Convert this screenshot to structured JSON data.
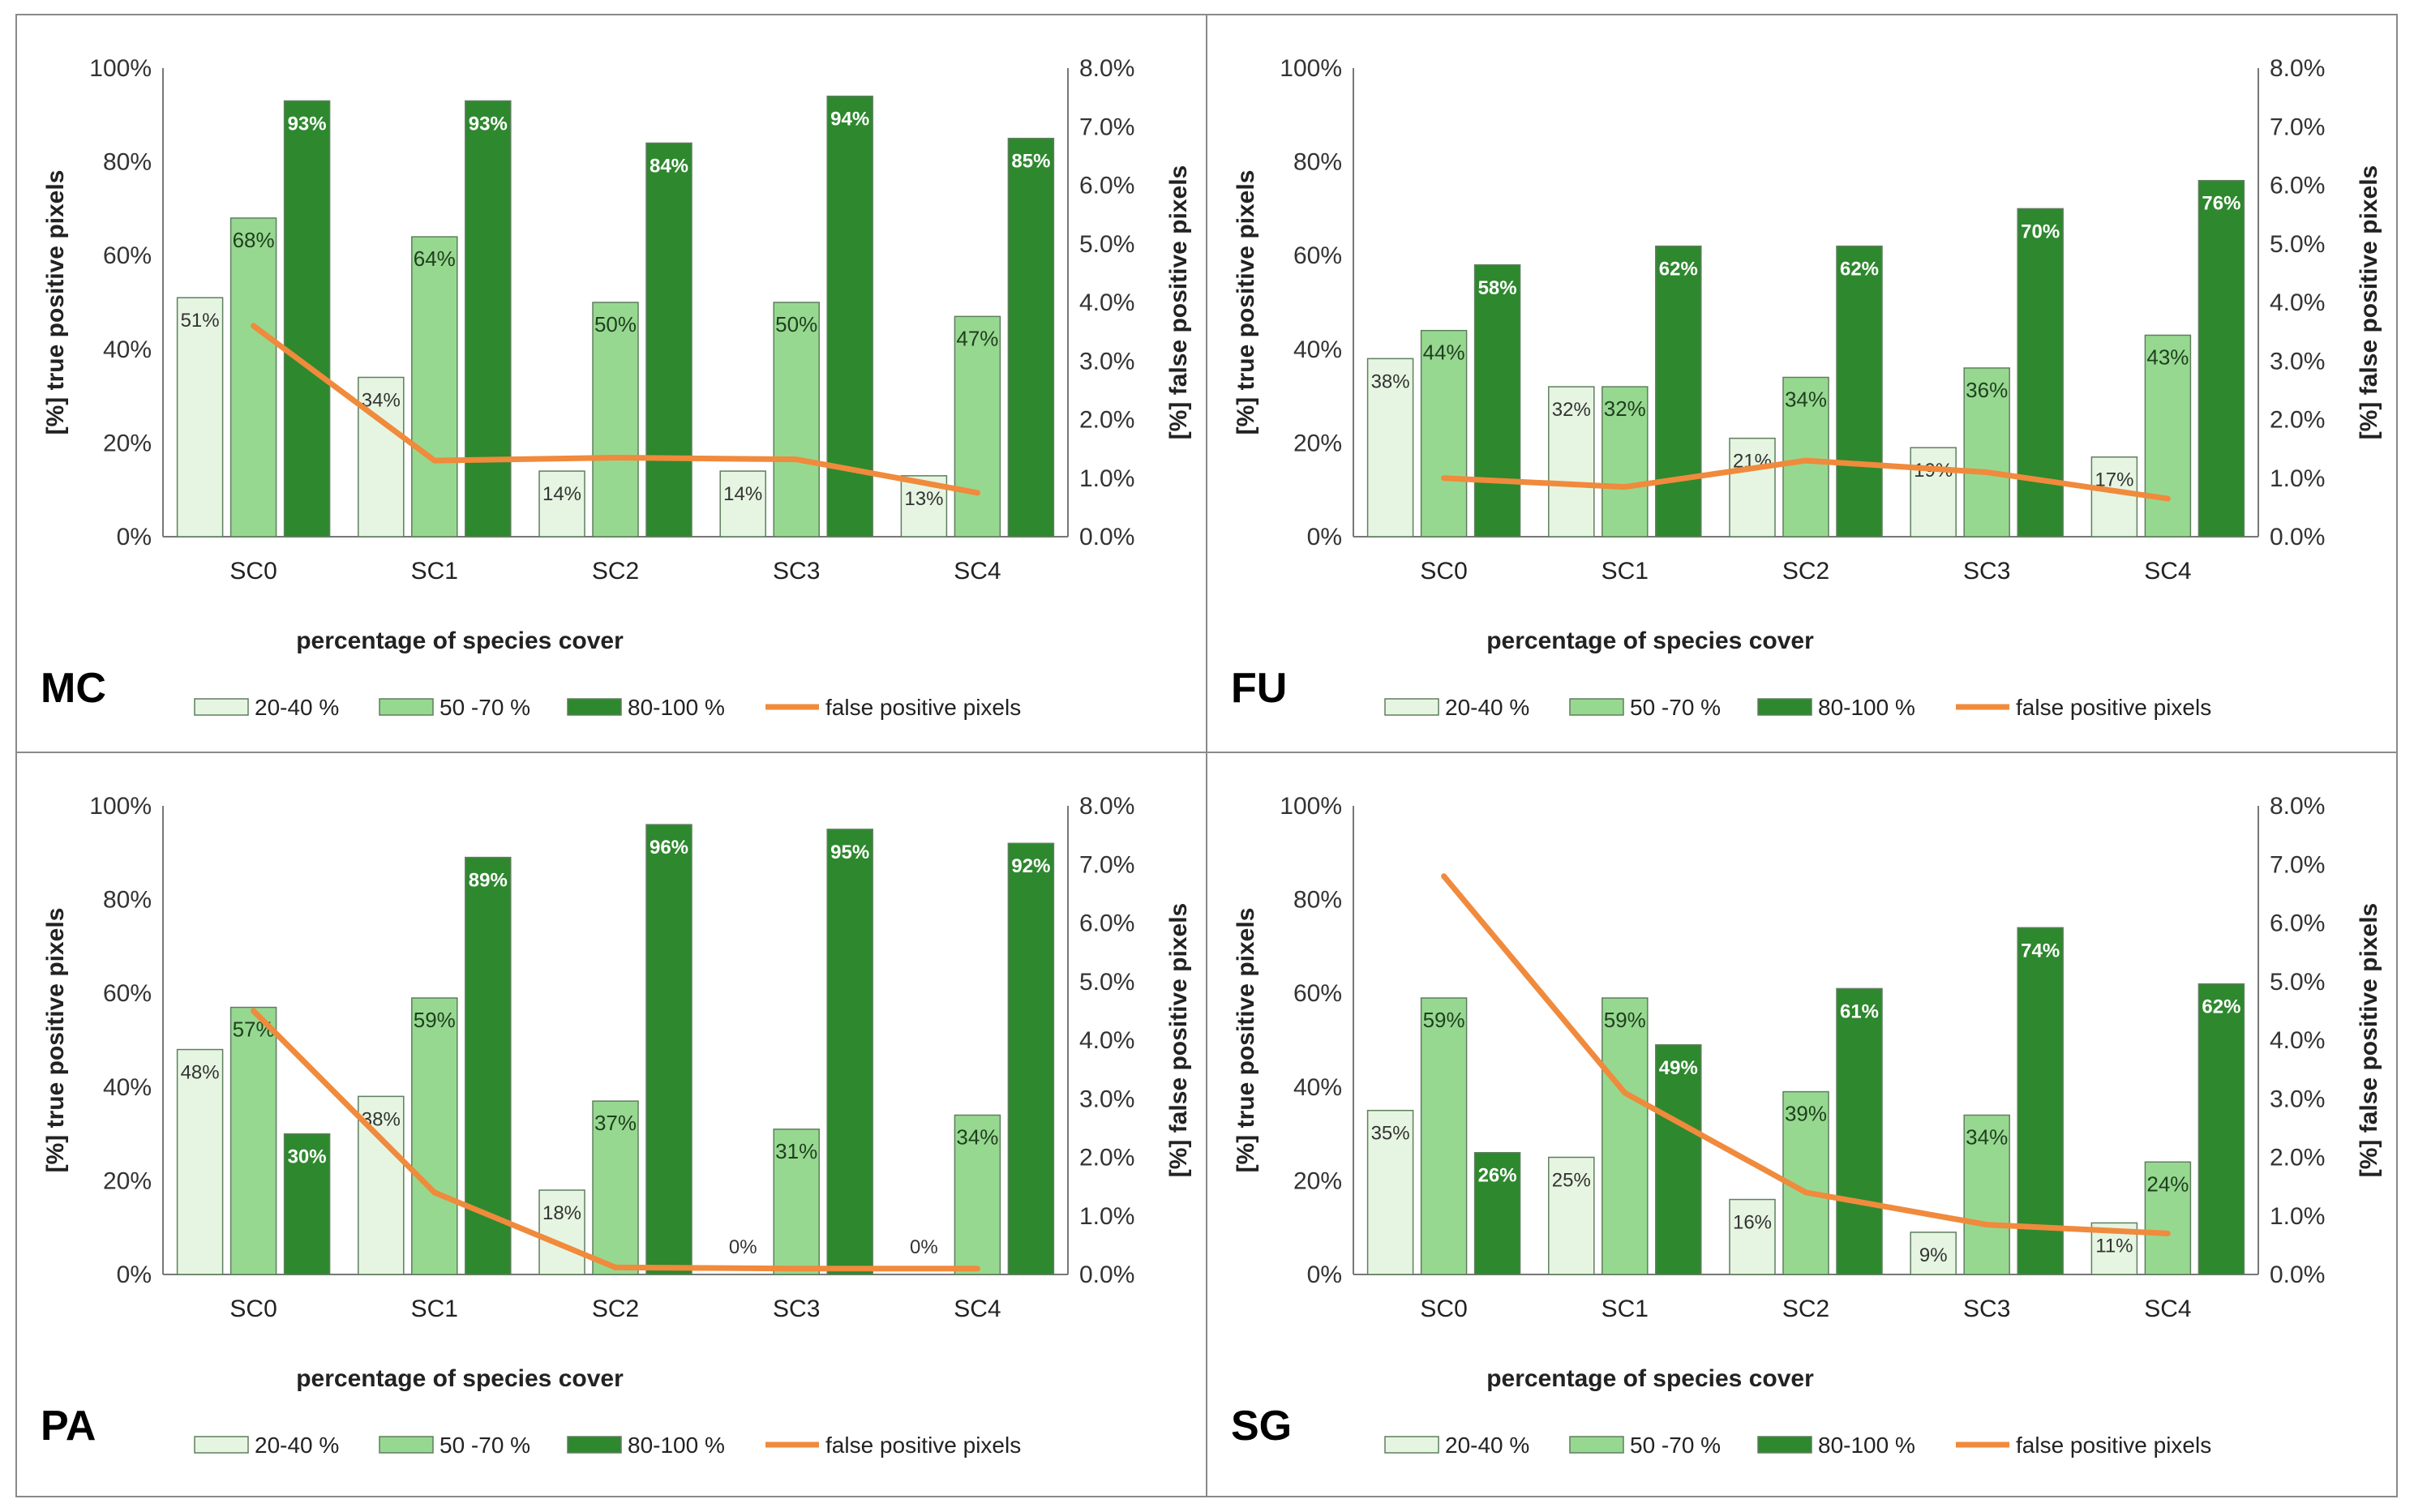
{
  "legend": {
    "items": [
      "20-40 %",
      "50 -70 %",
      "80-100 %",
      "false positive pixels"
    ]
  },
  "colors": {
    "light": "#e6f5e1",
    "mid": "#97d890",
    "dark": "#2e882e",
    "line": "#f08a3c"
  },
  "chart_data": [
    {
      "type": "bar",
      "panel": "MC",
      "categories": [
        "SC0",
        "SC1",
        "SC2",
        "SC3",
        "SC4"
      ],
      "xlabel": "percentage of species cover",
      "ylabel": "[%] true positive pixels",
      "y2label": "[%] false positive pixels",
      "ylim": [
        0,
        100
      ],
      "y2lim": [
        0,
        8
      ],
      "yticks": [
        "0%",
        "20%",
        "40%",
        "60%",
        "80%",
        "100%"
      ],
      "y2ticks": [
        "0.0%",
        "1.0%",
        "2.0%",
        "3.0%",
        "4.0%",
        "5.0%",
        "6.0%",
        "7.0%",
        "8.0%"
      ],
      "series": [
        {
          "name": "20-40 %",
          "values": [
            51,
            34,
            14,
            14,
            13
          ],
          "labels": [
            "51%",
            "34%",
            "14%",
            "14%",
            "13%"
          ]
        },
        {
          "name": "50 -70 %",
          "values": [
            68,
            64,
            50,
            50,
            47
          ],
          "labels": [
            "68%",
            "64%",
            "50%",
            "50%",
            "47%"
          ]
        },
        {
          "name": "80-100 %",
          "values": [
            93,
            93,
            84,
            94,
            85
          ],
          "labels": [
            "93%",
            "93%",
            "84%",
            "94%",
            "85%"
          ]
        }
      ],
      "line": {
        "name": "false positive pixels",
        "values": [
          3.6,
          1.3,
          1.35,
          1.32,
          0.75
        ]
      }
    },
    {
      "type": "bar",
      "panel": "FU",
      "categories": [
        "SC0",
        "SC1",
        "SC2",
        "SC3",
        "SC4"
      ],
      "xlabel": "percentage of species cover",
      "ylabel": "[%] true positive pixels",
      "y2label": "[%] false positive pixels",
      "ylim": [
        0,
        100
      ],
      "y2lim": [
        0,
        8
      ],
      "yticks": [
        "0%",
        "20%",
        "40%",
        "60%",
        "80%",
        "100%"
      ],
      "y2ticks": [
        "0.0%",
        "1.0%",
        "2.0%",
        "3.0%",
        "4.0%",
        "5.0%",
        "6.0%",
        "7.0%",
        "8.0%"
      ],
      "series": [
        {
          "name": "20-40 %",
          "values": [
            38,
            32,
            21,
            19,
            17
          ],
          "labels": [
            "38%",
            "32%",
            "21%",
            "19%",
            "17%"
          ]
        },
        {
          "name": "50 -70 %",
          "values": [
            44,
            32,
            34,
            36,
            43
          ],
          "labels": [
            "44%",
            "32%",
            "34%",
            "36%",
            "43%"
          ]
        },
        {
          "name": "80-100 %",
          "values": [
            58,
            62,
            62,
            70,
            76
          ],
          "labels": [
            "58%",
            "62%",
            "62%",
            "70%",
            "76%"
          ]
        }
      ],
      "line": {
        "name": "false positive pixels",
        "values": [
          1.0,
          0.85,
          1.3,
          1.1,
          0.65
        ]
      }
    },
    {
      "type": "bar",
      "panel": "PA",
      "categories": [
        "SC0",
        "SC1",
        "SC2",
        "SC3",
        "SC4"
      ],
      "xlabel": "percentage of species cover",
      "ylabel": "[%] true positive pixels",
      "y2label": "[%] false positive pixels",
      "ylim": [
        0,
        100
      ],
      "y2lim": [
        0,
        8
      ],
      "yticks": [
        "0%",
        "20%",
        "40%",
        "60%",
        "80%",
        "100%"
      ],
      "y2ticks": [
        "0.0%",
        "1.0%",
        "2.0%",
        "3.0%",
        "4.0%",
        "5.0%",
        "6.0%",
        "7.0%",
        "8.0%"
      ],
      "series": [
        {
          "name": "20-40 %",
          "values": [
            48,
            38,
            18,
            0,
            0
          ],
          "labels": [
            "48%",
            "38%",
            "18%",
            "0%",
            "0%"
          ]
        },
        {
          "name": "50 -70 %",
          "values": [
            57,
            59,
            37,
            31,
            34
          ],
          "labels": [
            "57%",
            "59%",
            "37%",
            "31%",
            "34%"
          ]
        },
        {
          "name": "80-100 %",
          "values": [
            30,
            89,
            96,
            95,
            92
          ],
          "labels": [
            "30%",
            "89%",
            "96%",
            "95%",
            "92%"
          ]
        }
      ],
      "line": {
        "name": "false positive pixels",
        "values": [
          4.5,
          1.4,
          0.12,
          0.1,
          0.1
        ]
      }
    },
    {
      "type": "bar",
      "panel": "SG",
      "categories": [
        "SC0",
        "SC1",
        "SC2",
        "SC3",
        "SC4"
      ],
      "xlabel": "percentage of species cover",
      "ylabel": "[%] true positive pixels",
      "y2label": "[%] false positive pixels",
      "ylim": [
        0,
        100
      ],
      "y2lim": [
        0,
        8
      ],
      "yticks": [
        "0%",
        "20%",
        "40%",
        "60%",
        "80%",
        "100%"
      ],
      "y2ticks": [
        "0.0%",
        "1.0%",
        "2.0%",
        "3.0%",
        "4.0%",
        "5.0%",
        "6.0%",
        "7.0%",
        "8.0%"
      ],
      "series": [
        {
          "name": "20-40 %",
          "values": [
            35,
            25,
            16,
            9,
            11
          ],
          "labels": [
            "35%",
            "25%",
            "16%",
            "9%",
            "11%"
          ]
        },
        {
          "name": "50 -70 %",
          "values": [
            59,
            59,
            39,
            34,
            24
          ],
          "labels": [
            "59%",
            "59%",
            "39%",
            "34%",
            "24%"
          ]
        },
        {
          "name": "80-100 %",
          "values": [
            26,
            49,
            61,
            74,
            62
          ],
          "labels": [
            "26%",
            "49%",
            "61%",
            "74%",
            "62%"
          ]
        }
      ],
      "line": {
        "name": "false positive pixels",
        "values": [
          6.8,
          3.1,
          1.4,
          0.85,
          0.7
        ]
      }
    }
  ]
}
